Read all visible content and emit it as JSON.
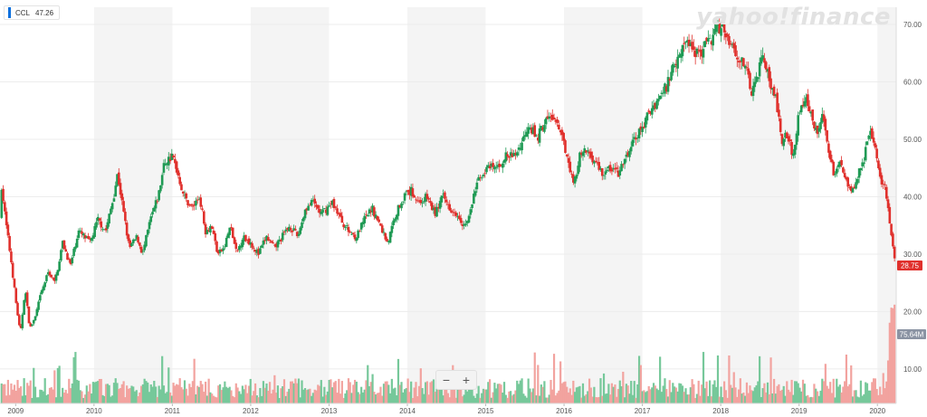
{
  "legend": {
    "symbol": "CCL",
    "value": "47.26",
    "color": "#0a6fdd"
  },
  "watermark": "yahoo!finance",
  "zoom": {
    "minus": "−",
    "plus": "+"
  },
  "price_badge": {
    "label": "28.75",
    "color": "#e0302c"
  },
  "volume_badge": {
    "label": "75.64M",
    "color": "#8a93a3"
  },
  "colors": {
    "up": "#1f9a54",
    "down": "#e0302c",
    "up_volume": "#76c89a",
    "down_volume": "#f2a39f",
    "band": "#f4f4f4",
    "grid": "#ececec"
  },
  "chart_data": {
    "type": "candlestick",
    "ticker": "CCL",
    "price_axis": {
      "ylim": [
        4,
        73
      ],
      "ticks": [
        10,
        20,
        30,
        40,
        50,
        60,
        70
      ],
      "tick_labels": [
        "10.00",
        "20.00",
        "30.00",
        "40.00",
        "50.00",
        "60.00",
        "70.00"
      ]
    },
    "x_axis": {
      "xlim": [
        2008.8,
        2020.24
      ],
      "ticks": [
        2009,
        2010,
        2011,
        2012,
        2013,
        2014,
        2015,
        2016,
        2017,
        2018,
        2019,
        2020
      ],
      "tick_labels": [
        "2009",
        "2010",
        "2011",
        "2012",
        "2013",
        "2014",
        "2015",
        "2016",
        "2017",
        "2018",
        "2019",
        "2020"
      ]
    },
    "alternating_year_bands": true,
    "last_close": 28.75,
    "last_volume": "75.64M",
    "price_path": [
      [
        2008.8,
        36
      ],
      [
        2008.82,
        42
      ],
      [
        2008.87,
        36
      ],
      [
        2008.95,
        28
      ],
      [
        2009.0,
        22
      ],
      [
        2009.06,
        16
      ],
      [
        2009.12,
        24
      ],
      [
        2009.18,
        17
      ],
      [
        2009.25,
        19
      ],
      [
        2009.32,
        23
      ],
      [
        2009.42,
        27
      ],
      [
        2009.5,
        25
      ],
      [
        2009.6,
        32
      ],
      [
        2009.7,
        28
      ],
      [
        2009.8,
        34
      ],
      [
        2009.95,
        32
      ],
      [
        2010.05,
        36
      ],
      [
        2010.15,
        34
      ],
      [
        2010.25,
        40
      ],
      [
        2010.3,
        44
      ],
      [
        2010.38,
        37
      ],
      [
        2010.45,
        31
      ],
      [
        2010.55,
        33
      ],
      [
        2010.62,
        30
      ],
      [
        2010.72,
        36
      ],
      [
        2010.82,
        40
      ],
      [
        2010.9,
        46
      ],
      [
        2011.0,
        47
      ],
      [
        2011.05,
        45
      ],
      [
        2011.15,
        40
      ],
      [
        2011.25,
        38
      ],
      [
        2011.35,
        40
      ],
      [
        2011.42,
        34
      ],
      [
        2011.5,
        35
      ],
      [
        2011.58,
        30
      ],
      [
        2011.66,
        31
      ],
      [
        2011.74,
        35
      ],
      [
        2011.82,
        30
      ],
      [
        2011.9,
        33
      ],
      [
        2012.0,
        32
      ],
      [
        2012.1,
        30
      ],
      [
        2012.2,
        33
      ],
      [
        2012.3,
        31
      ],
      [
        2012.4,
        33
      ],
      [
        2012.5,
        35
      ],
      [
        2012.6,
        33
      ],
      [
        2012.7,
        38
      ],
      [
        2012.8,
        39
      ],
      [
        2012.9,
        37
      ],
      [
        2013.05,
        39
      ],
      [
        2013.15,
        36
      ],
      [
        2013.25,
        34
      ],
      [
        2013.35,
        33
      ],
      [
        2013.45,
        36
      ],
      [
        2013.55,
        38
      ],
      [
        2013.65,
        35
      ],
      [
        2013.75,
        32
      ],
      [
        2013.85,
        37
      ],
      [
        2013.95,
        40
      ],
      [
        2014.05,
        41
      ],
      [
        2014.15,
        39
      ],
      [
        2014.25,
        40
      ],
      [
        2014.35,
        37
      ],
      [
        2014.45,
        40
      ],
      [
        2014.55,
        38
      ],
      [
        2014.65,
        37
      ],
      [
        2014.72,
        35
      ],
      [
        2014.78,
        36
      ],
      [
        2014.88,
        42
      ],
      [
        2014.95,
        44
      ],
      [
        2015.05,
        45
      ],
      [
        2015.15,
        45
      ],
      [
        2015.25,
        47
      ],
      [
        2015.35,
        47
      ],
      [
        2015.45,
        49
      ],
      [
        2015.55,
        53
      ],
      [
        2015.65,
        50
      ],
      [
        2015.75,
        53
      ],
      [
        2015.85,
        54
      ],
      [
        2015.95,
        51
      ],
      [
        2016.05,
        47
      ],
      [
        2016.12,
        42
      ],
      [
        2016.2,
        47
      ],
      [
        2016.3,
        48
      ],
      [
        2016.4,
        46
      ],
      [
        2016.5,
        44
      ],
      [
        2016.6,
        45
      ],
      [
        2016.7,
        44
      ],
      [
        2016.8,
        47
      ],
      [
        2016.9,
        50
      ],
      [
        2017.0,
        52
      ],
      [
        2017.1,
        55
      ],
      [
        2017.2,
        57
      ],
      [
        2017.3,
        59
      ],
      [
        2017.4,
        63
      ],
      [
        2017.5,
        66
      ],
      [
        2017.6,
        67
      ],
      [
        2017.7,
        65
      ],
      [
        2017.8,
        66
      ],
      [
        2017.9,
        68
      ],
      [
        2018.0,
        70
      ],
      [
        2018.05,
        69
      ],
      [
        2018.12,
        67
      ],
      [
        2018.2,
        65
      ],
      [
        2018.3,
        63
      ],
      [
        2018.4,
        58
      ],
      [
        2018.48,
        62
      ],
      [
        2018.55,
        65
      ],
      [
        2018.62,
        60
      ],
      [
        2018.7,
        57
      ],
      [
        2018.78,
        50
      ],
      [
        2018.85,
        51
      ],
      [
        2018.92,
        47
      ],
      [
        2019.0,
        55
      ],
      [
        2019.08,
        57
      ],
      [
        2019.15,
        55
      ],
      [
        2019.22,
        51
      ],
      [
        2019.3,
        55
      ],
      [
        2019.38,
        47
      ],
      [
        2019.45,
        44
      ],
      [
        2019.52,
        46
      ],
      [
        2019.6,
        43
      ],
      [
        2019.68,
        41
      ],
      [
        2019.75,
        44
      ],
      [
        2019.82,
        46
      ],
      [
        2019.9,
        51
      ],
      [
        2019.95,
        50
      ],
      [
        2020.0,
        46
      ],
      [
        2020.05,
        43
      ],
      [
        2020.1,
        42
      ],
      [
        2020.15,
        36
      ],
      [
        2020.19,
        32
      ],
      [
        2020.22,
        28.75
      ]
    ]
  }
}
